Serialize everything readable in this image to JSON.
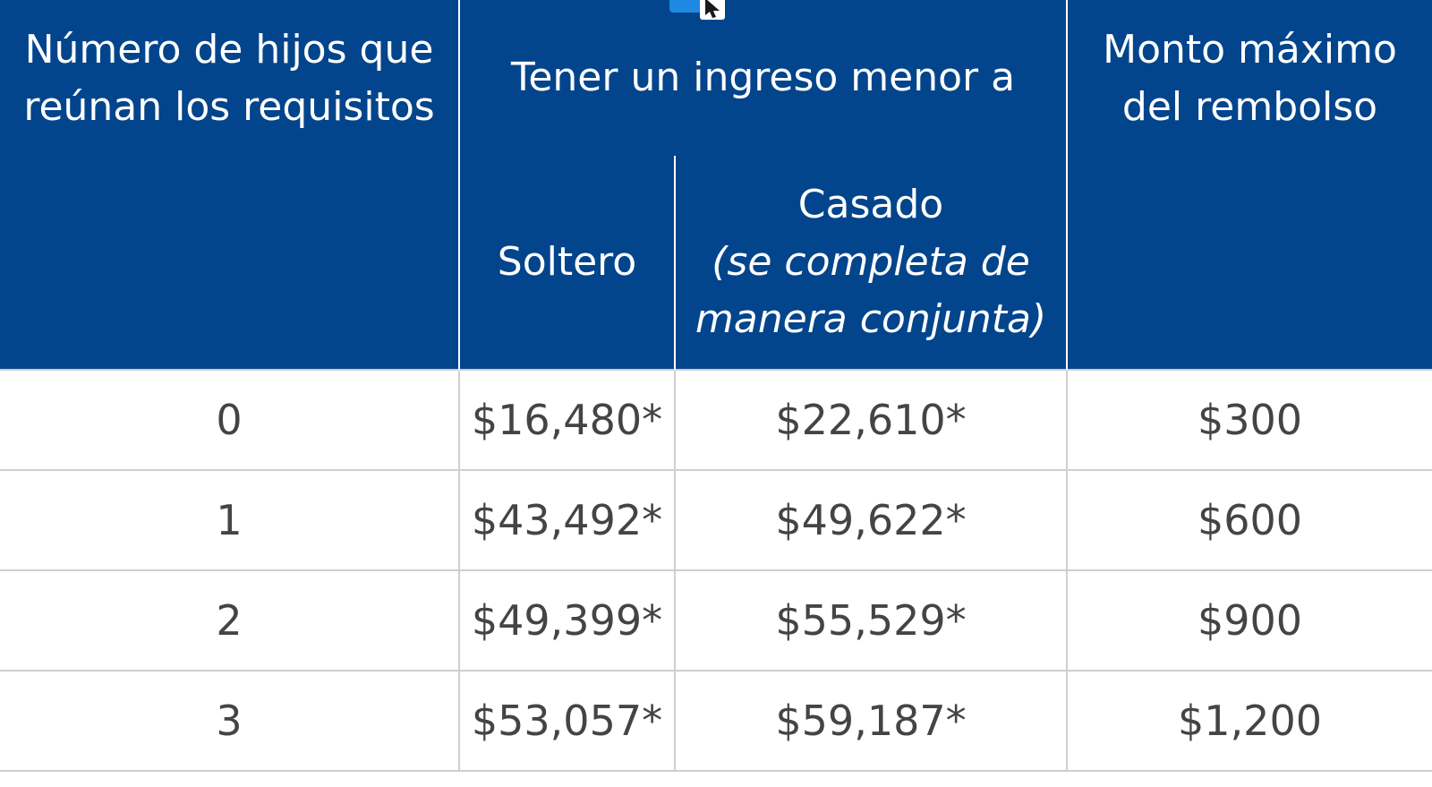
{
  "colors": {
    "header_bg": "#03458C",
    "header_text": "#FFFFFF",
    "body_text": "#444444",
    "grid_line": "#CFCFCF"
  },
  "header": {
    "children_col_line1": "Número de hijos que",
    "children_col_line2": "reúnan los requisitos",
    "income_group": "Tener un ingreso menor a",
    "single": "Soltero",
    "married": "Casado",
    "married_note_line1": "(se completa de",
    "married_note_line2": "manera conjunta)",
    "max_col_line1": "Monto máximo",
    "max_col_line2": "del rembolso"
  },
  "rows": [
    {
      "children": "0",
      "single": "$16,480*",
      "married": "$22,610*",
      "max": "$300"
    },
    {
      "children": "1",
      "single": "$43,492*",
      "married": "$49,622*",
      "max": "$600"
    },
    {
      "children": "2",
      "single": "$49,399*",
      "married": "$55,529*",
      "max": "$900"
    },
    {
      "children": "3",
      "single": "$53,057*",
      "married": "$59,187*",
      "max": "$1,200"
    }
  ]
}
